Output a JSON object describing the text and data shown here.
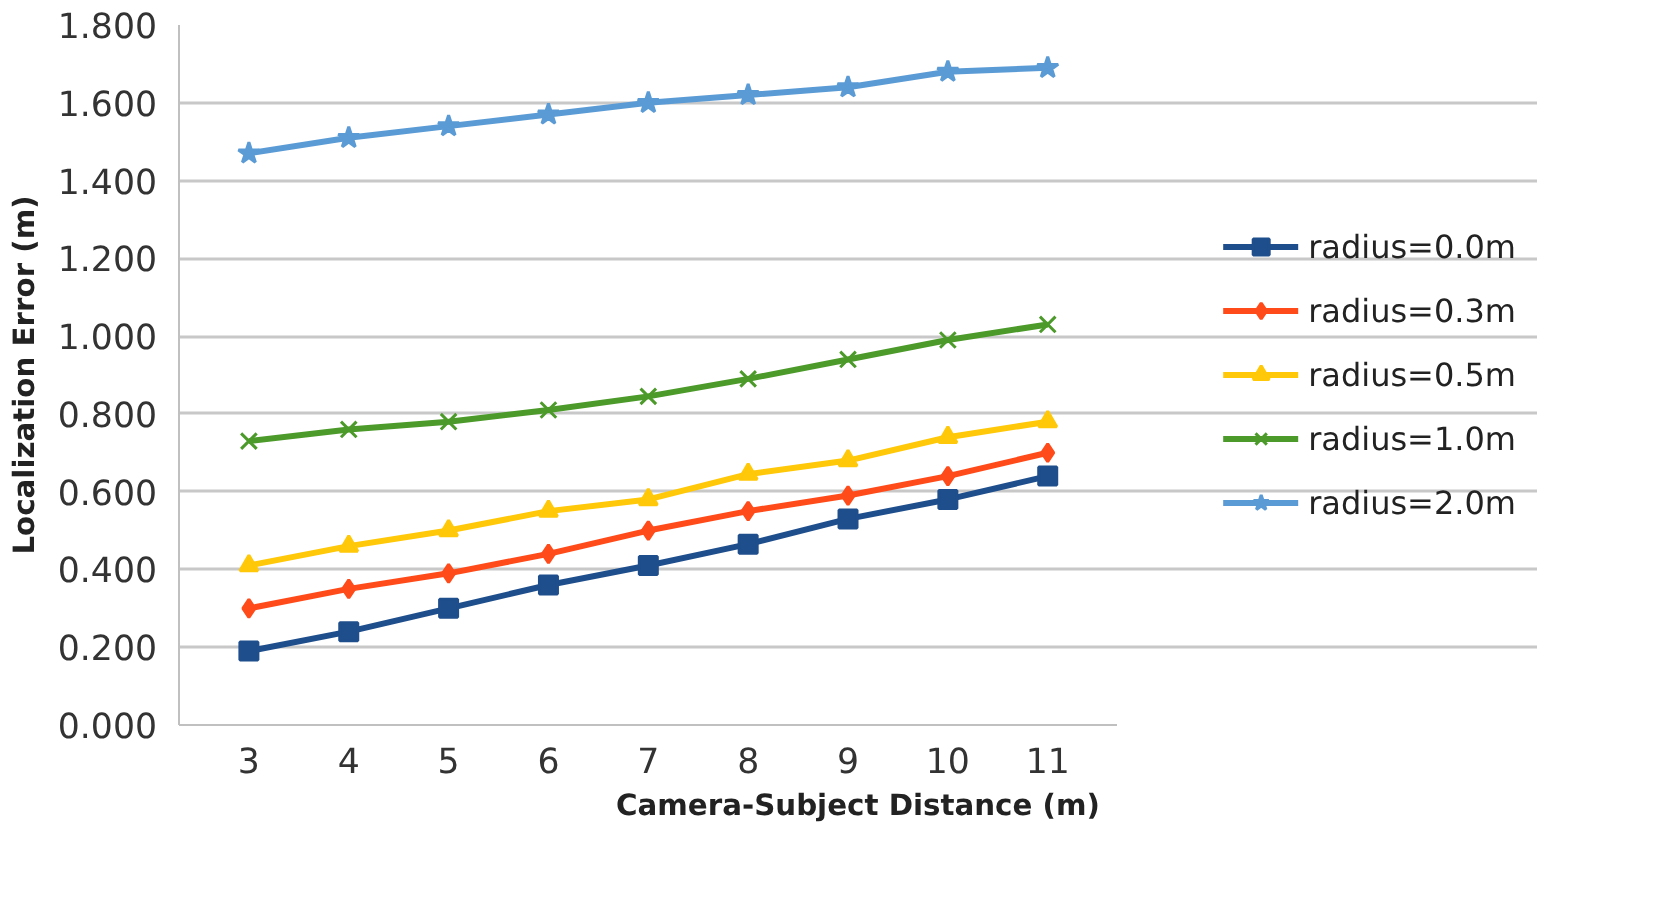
{
  "chart_data": {
    "type": "line",
    "xlabel": "Camera-Subject Distance (m)",
    "ylabel": "Localization Error (m)",
    "categories": [
      "3",
      "4",
      "5",
      "6",
      "7",
      "8",
      "9",
      "10",
      "11"
    ],
    "ylim": [
      0,
      1.8
    ],
    "yticks": [
      {
        "value": 0,
        "label": "0.000"
      },
      {
        "value": 0.2,
        "label": "0.200"
      },
      {
        "value": 0.4,
        "label": "0.400"
      },
      {
        "value": 0.6,
        "label": "0.600"
      },
      {
        "value": 0.8,
        "label": "0.800"
      },
      {
        "value": 1.0,
        "label": "1.000"
      },
      {
        "value": 1.2,
        "label": "1.200"
      },
      {
        "value": 1.4,
        "label": "1.400"
      },
      {
        "value": 1.6,
        "label": "1.600"
      },
      {
        "value": 1.8,
        "label": "1.800"
      }
    ],
    "grid": "y",
    "legend": "right",
    "series": [
      {
        "name": "radius=0.0m",
        "color": "#1f4e8c",
        "marker": "square",
        "values": [
          0.19,
          0.24,
          0.3,
          0.36,
          0.41,
          0.465,
          0.53,
          0.58,
          0.64
        ]
      },
      {
        "name": "radius=0.3m",
        "color": "#ff4b1a",
        "marker": "diamond",
        "values": [
          0.3,
          0.35,
          0.39,
          0.44,
          0.5,
          0.55,
          0.59,
          0.64,
          0.7
        ]
      },
      {
        "name": "radius=0.5m",
        "color": "#ffc808",
        "marker": "triangle",
        "values": [
          0.41,
          0.46,
          0.5,
          0.55,
          0.58,
          0.645,
          0.68,
          0.74,
          0.78
        ]
      },
      {
        "name": "radius=1.0m",
        "color": "#4c9a2a",
        "marker": "cross",
        "values": [
          0.73,
          0.76,
          0.78,
          0.81,
          0.845,
          0.89,
          0.94,
          0.99,
          1.03
        ]
      },
      {
        "name": "radius=2.0m",
        "color": "#5b9bd5",
        "marker": "star",
        "values": [
          1.47,
          1.51,
          1.54,
          1.57,
          1.6,
          1.62,
          1.64,
          1.68,
          1.69
        ]
      }
    ]
  }
}
